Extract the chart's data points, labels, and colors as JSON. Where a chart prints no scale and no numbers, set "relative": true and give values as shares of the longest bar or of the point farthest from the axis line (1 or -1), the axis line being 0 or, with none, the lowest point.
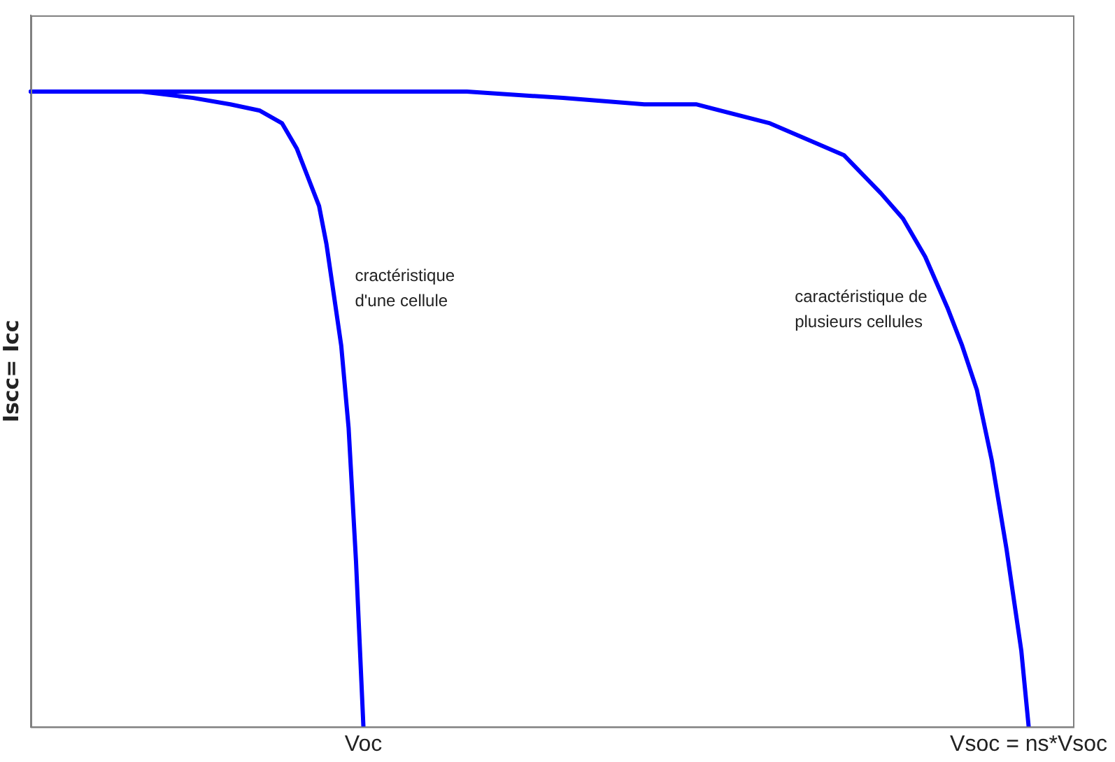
{
  "chart_data": {
    "type": "line",
    "relative": true,
    "ylabel": "Iscc= Icc",
    "categories": [
      null,
      null,
      null,
      null,
      null,
      null,
      null,
      null,
      null,
      null,
      null,
      null,
      null,
      null,
      null,
      null,
      null,
      null,
      null,
      null,
      null,
      null,
      null,
      null,
      null,
      null,
      null,
      null,
      null,
      null,
      null,
      null,
      null,
      null,
      null,
      null,
      null,
      null,
      null,
      null,
      null,
      null,
      null,
      null,
      null,
      "Voc",
      null,
      null,
      null,
      null,
      null,
      null,
      null,
      null,
      null,
      null,
      null,
      null,
      null,
      null,
      null,
      null,
      null,
      null,
      null,
      null,
      null,
      null,
      null,
      null,
      null,
      null,
      null,
      null,
      null,
      null,
      null,
      null,
      null,
      null,
      null,
      null,
      null,
      null,
      null,
      null,
      null,
      null,
      null,
      null,
      null,
      null,
      null,
      null,
      null,
      null,
      null,
      null,
      null,
      null,
      null,
      null,
      null,
      null,
      null,
      null,
      null,
      null,
      null,
      null,
      null,
      null,
      null,
      null,
      null,
      null,
      null,
      null,
      null,
      null,
      null,
      null,
      null,
      null,
      null,
      null,
      null,
      null,
      null,
      null,
      null,
      null,
      null,
      null,
      null,
      "Vsoc = ns*Vsoc",
      null,
      null,
      null,
      null,
      null,
      null
    ],
    "grid": false,
    "legend": false,
    "marker": "none",
    "line_style": "solid",
    "series": [
      {
        "color": "#0000ff",
        "values": [
          1,
          null,
          null,
          null,
          null,
          null,
          null,
          null,
          null,
          null,
          null,
          null,
          null,
          null,
          null,
          1,
          null,
          null,
          null,
          null,
          null,
          null,
          0.99,
          null,
          null,
          null,
          null,
          0.98,
          null,
          null,
          null,
          0.97,
          null,
          null,
          0.95,
          null,
          0.91,
          null,
          0.85,
          0.82,
          0.76,
          0.68,
          0.6,
          0.47,
          0.26,
          0,
          null,
          null,
          null,
          null,
          null,
          null,
          null,
          null,
          null,
          null,
          null,
          null,
          null,
          null,
          null,
          null,
          null,
          null,
          null,
          null,
          null,
          null,
          null,
          null,
          null,
          null,
          null,
          null,
          null,
          null,
          null,
          null,
          null,
          null,
          null,
          null,
          null,
          null,
          null,
          null,
          null,
          null,
          null,
          null,
          null,
          null,
          null,
          null,
          null,
          null,
          null,
          null,
          null,
          null,
          null,
          null,
          null,
          null,
          null,
          null,
          null,
          null,
          null,
          null,
          null,
          null,
          null,
          null,
          null,
          null,
          null,
          null,
          null,
          null,
          null,
          null,
          null,
          null,
          null,
          null,
          null,
          null,
          null,
          null,
          null,
          null,
          null,
          null,
          null,
          null,
          null,
          null,
          null,
          null,
          null,
          null
        ]
      },
      {
        "color": "#0000ff",
        "values": [
          1,
          null,
          null,
          null,
          null,
          null,
          null,
          null,
          null,
          null,
          null,
          null,
          null,
          null,
          null,
          null,
          null,
          null,
          null,
          null,
          null,
          null,
          null,
          null,
          null,
          null,
          null,
          null,
          null,
          null,
          null,
          null,
          null,
          null,
          null,
          null,
          null,
          null,
          null,
          null,
          null,
          null,
          null,
          null,
          null,
          null,
          1,
          null,
          null,
          null,
          null,
          null,
          null,
          null,
          null,
          null,
          null,
          null,
          null,
          1,
          null,
          null,
          null,
          null,
          null,
          null,
          null,
          null,
          null,
          null,
          null,
          null,
          0.99,
          null,
          null,
          null,
          null,
          null,
          null,
          null,
          null,
          null,
          null,
          0.98,
          null,
          null,
          null,
          null,
          null,
          null,
          0.98,
          null,
          null,
          null,
          null,
          null,
          null,
          null,
          null,
          null,
          0.95,
          null,
          null,
          null,
          null,
          null,
          0.92,
          null,
          null,
          null,
          0.9,
          null,
          null,
          null,
          null,
          0.84,
          null,
          null,
          0.8,
          null,
          null,
          0.74,
          null,
          null,
          0.66,
          null,
          0.6,
          null,
          0.53,
          null,
          0.42,
          null,
          0.28,
          null,
          0.12,
          0,
          null,
          null,
          null,
          null,
          null,
          null
        ]
      }
    ],
    "annotations": [
      "cractéristique\nd'une cellule",
      "caractéristique de\nplusieurs cellules"
    ]
  }
}
